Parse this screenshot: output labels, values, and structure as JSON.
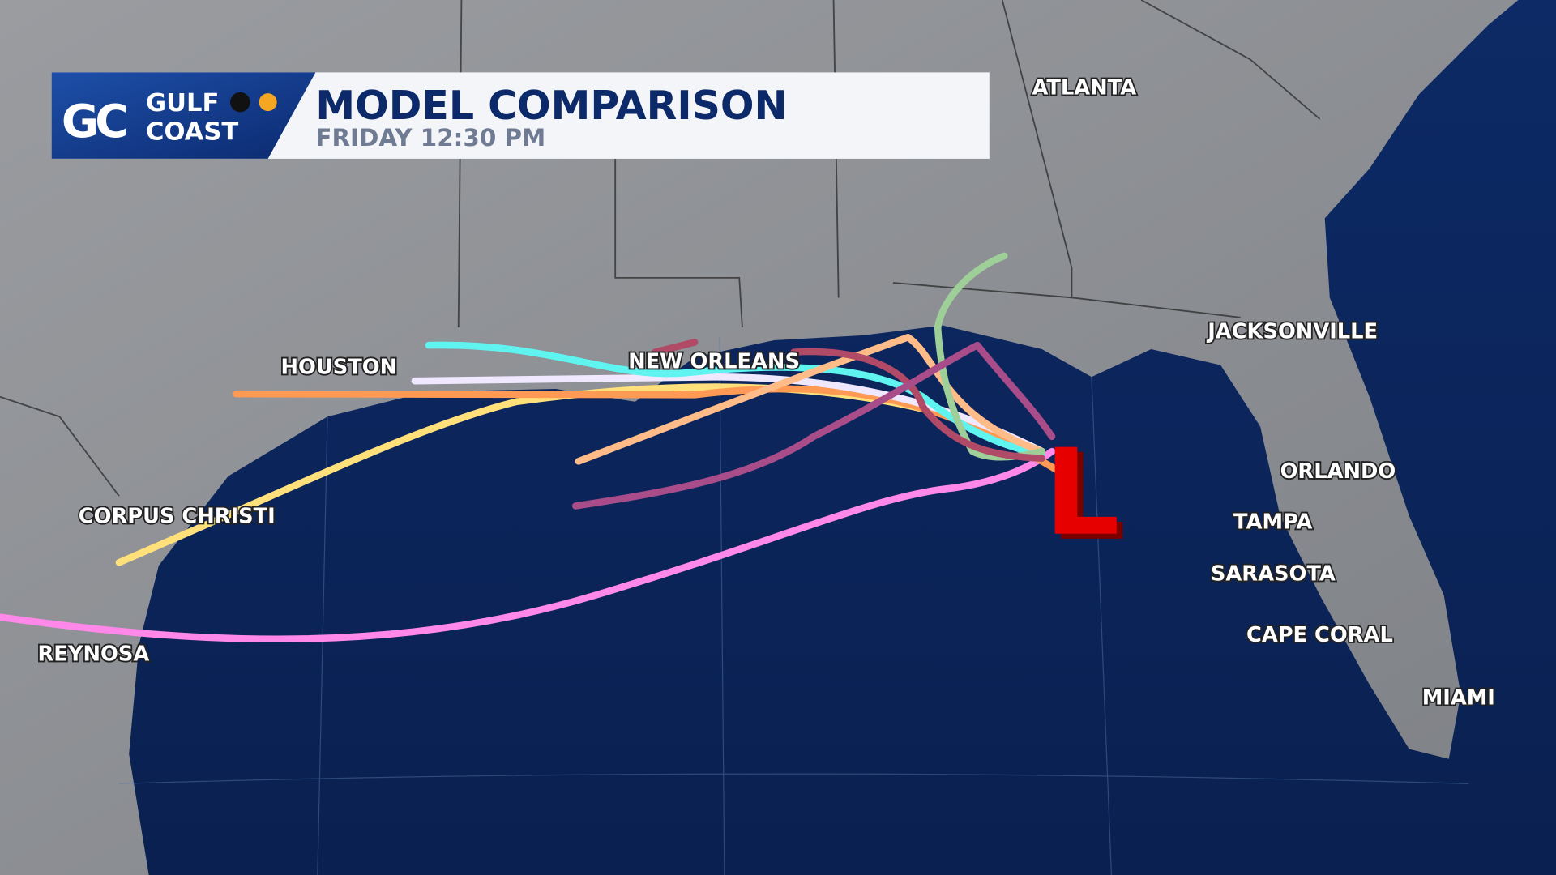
{
  "header": {
    "logo": {
      "mark": "GC",
      "line1": "GULF",
      "line2": "COAST"
    },
    "title": "MODEL COMPARISON",
    "subtitle": "FRIDAY 12:30 PM"
  },
  "cities": [
    {
      "label": "ATLANTA"
    },
    {
      "label": "HOUSTON"
    },
    {
      "label": "NEW ORLEANS"
    },
    {
      "label": "JACKSONVILLE"
    },
    {
      "label": "CORPUS CHRISTI"
    },
    {
      "label": "ORLANDO"
    },
    {
      "label": "TAMPA"
    },
    {
      "label": "SARASOTA"
    },
    {
      "label": "CAPE CORAL"
    },
    {
      "label": "REYNOSA"
    },
    {
      "label": "MIAMI"
    }
  ],
  "low_marker": "L"
}
